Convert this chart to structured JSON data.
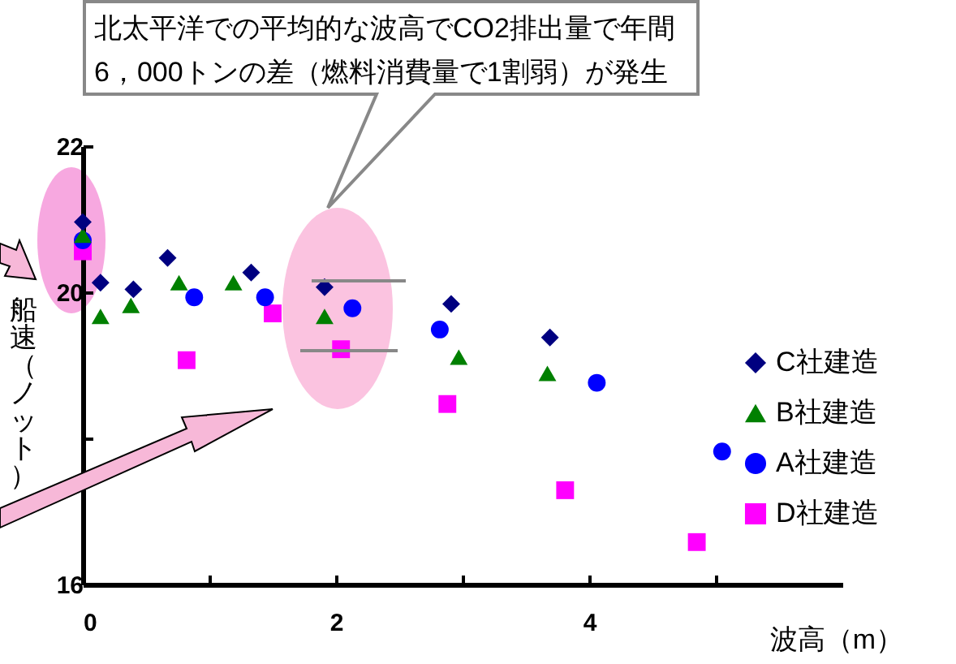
{
  "chart_data": {
    "type": "scatter",
    "xlabel": "波高（m）",
    "ylabel": "船速（ノット）",
    "annotations": [
      "北太平洋での平均的な波高でCO2排出量で年間\n6，000トンの差（燃料消費量で1割弱）が発生"
    ],
    "xlim": [
      0,
      6
    ],
    "xticks": [
      0,
      {
        "value": 1,
        "label": null
      },
      2,
      {
        "value": 3,
        "label": null
      },
      4,
      {
        "value": 5,
        "label": null
      }
    ],
    "ylim": [
      16,
      22
    ],
    "yticks": [
      16,
      {
        "value": 18,
        "label": null
      },
      20,
      22
    ],
    "grid": false,
    "legend": "right",
    "series": [
      {
        "name": "C社建造",
        "color": "#000080",
        "marker": "diamond",
        "x": [
          0,
          0.14,
          0.4,
          0.67,
          1.33,
          1.91,
          2.91,
          3.69
        ],
        "values": [
          20.96,
          20.13,
          20.04,
          20.47,
          20.27,
          20.07,
          19.84,
          19.38
        ]
      },
      {
        "name": "B社建造",
        "color": "#008000",
        "marker": "triangle",
        "x": [
          0,
          0.14,
          0.38,
          0.76,
          1.19,
          1.91,
          2.97,
          3.67
        ],
        "values": [
          20.78,
          19.67,
          19.82,
          20.13,
          20.13,
          19.67,
          19.11,
          18.89
        ]
      },
      {
        "name": "A社建造",
        "color": "#0000ff",
        "marker": "circle",
        "x": [
          0,
          0.88,
          1.44,
          2.13,
          2.82,
          4.06,
          5.05
        ],
        "values": [
          20.71,
          19.93,
          19.93,
          19.78,
          19.49,
          18.76,
          17.82
        ]
      },
      {
        "name": "D社建造",
        "color": "#ff00ff",
        "marker": "square",
        "x": [
          0,
          0.82,
          1.5,
          2.04,
          2.88,
          3.81,
          4.85
        ],
        "values": [
          20.56,
          19.07,
          19.71,
          19.22,
          18.47,
          17.29,
          16.58
        ]
      }
    ]
  }
}
